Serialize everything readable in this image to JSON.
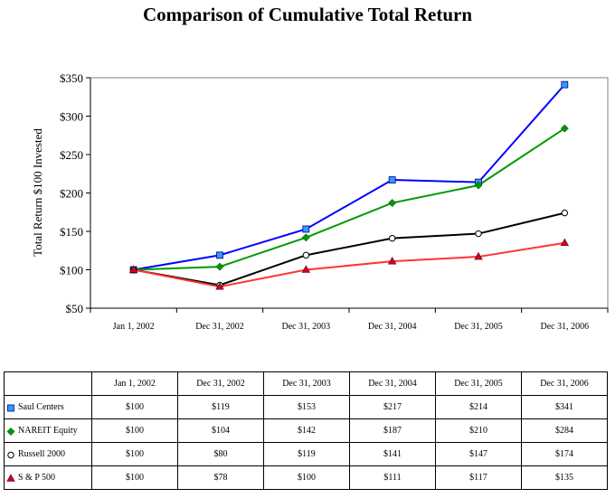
{
  "chart_data": {
    "type": "line",
    "title": "Comparison of Cumulative Total Return",
    "ylabel": "Total Return $100 Invested",
    "xlabel": "",
    "categories": [
      "Jan 1, 2002",
      "Dec 31, 2002",
      "Dec 31, 2003",
      "Dec 31, 2004",
      "Dec 31, 2005",
      "Dec 31, 2006"
    ],
    "ylim": [
      50,
      350
    ],
    "yticks": [
      50,
      100,
      150,
      200,
      250,
      300,
      350
    ],
    "ytick_labels": [
      "$50",
      "$100",
      "$150",
      "$200",
      "$250",
      "$300",
      "$350"
    ],
    "grid": false,
    "series": [
      {
        "name": "Saul Centers",
        "values": [
          100,
          119,
          153,
          217,
          214,
          341
        ],
        "color": "#0000ff",
        "marker": "square",
        "marker_fill": "#3399ff"
      },
      {
        "name": "NAREIT Equity",
        "values": [
          100,
          104,
          142,
          187,
          210,
          284
        ],
        "color": "#009900",
        "marker": "diamond",
        "marker_fill": "#009900"
      },
      {
        "name": "Russell 2000",
        "values": [
          100,
          80,
          119,
          141,
          147,
          174
        ],
        "color": "#000000",
        "marker": "circle",
        "marker_fill": "#ffffff"
      },
      {
        "name": "S & P 500",
        "values": [
          100,
          78,
          100,
          111,
          117,
          135
        ],
        "color": "#ff3333",
        "marker": "triangle",
        "marker_fill": "#cc0033"
      }
    ]
  },
  "table": {
    "header": [
      "",
      "Jan 1, 2002",
      "Dec 31, 2002",
      "Dec 31, 2003",
      "Dec 31, 2004",
      "Dec 31, 2005",
      "Dec 31, 2006"
    ],
    "rows": [
      {
        "label": "Saul Centers",
        "cells": [
          "$100",
          "$119",
          "$153",
          "$217",
          "$214",
          "$341"
        ]
      },
      {
        "label": "NAREIT Equity",
        "cells": [
          "$100",
          "$104",
          "$142",
          "$187",
          "$210",
          "$284"
        ]
      },
      {
        "label": "Russell 2000",
        "cells": [
          "$100",
          "$80",
          "$119",
          "$141",
          "$147",
          "$174"
        ]
      },
      {
        "label": "S & P 500",
        "cells": [
          "$100",
          "$78",
          "$100",
          "$111",
          "$117",
          "$135"
        ]
      }
    ]
  }
}
